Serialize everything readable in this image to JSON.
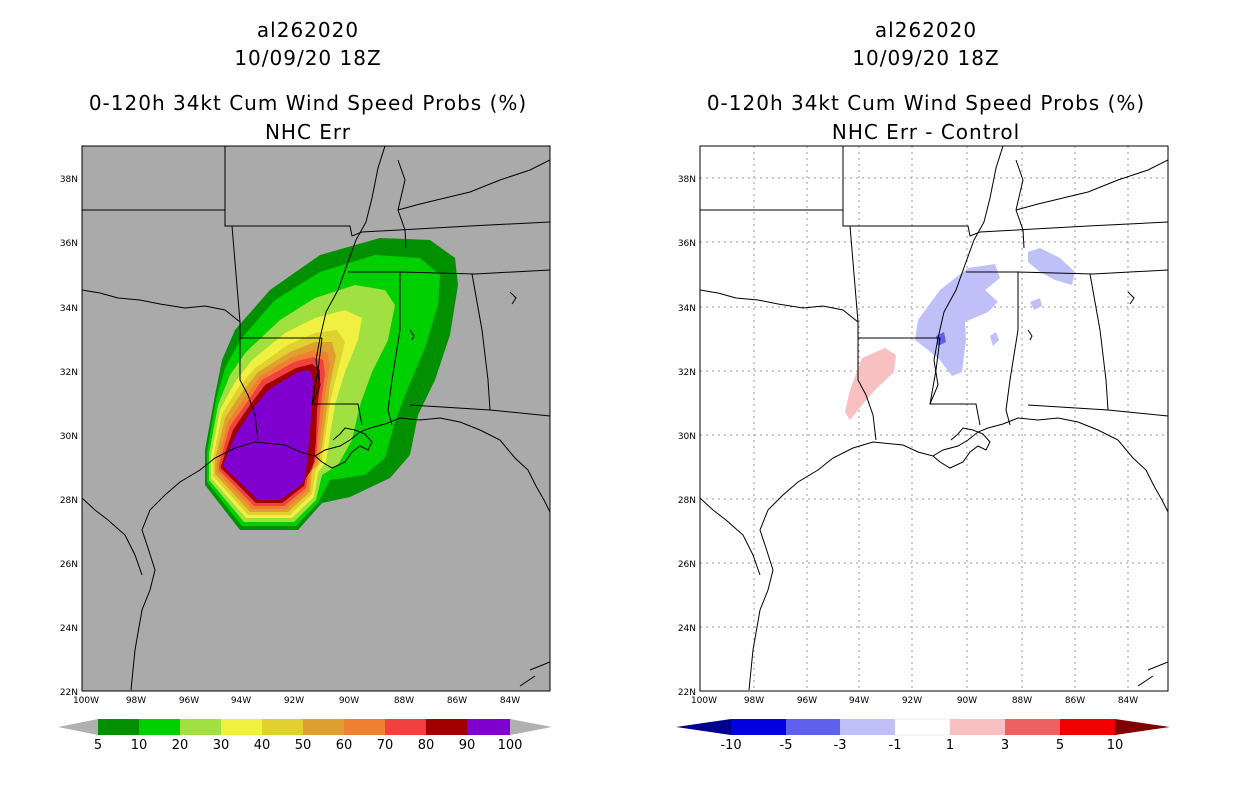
{
  "left_panel": {
    "storm_id": "al262020",
    "datetime": "10/09/20 18Z",
    "product": "0-120h 34kt Cum Wind Speed Probs (%)",
    "subtitle": "NHC Err",
    "lat_labels": [
      "38N",
      "36N",
      "34N",
      "32N",
      "30N",
      "28N",
      "26N",
      "24N",
      "22N"
    ],
    "lon_labels": [
      "100W",
      "98W",
      "96W",
      "94W",
      "92W",
      "90W",
      "88W",
      "86W",
      "84W"
    ],
    "colorbar": {
      "labels": [
        "5",
        "10",
        "20",
        "30",
        "40",
        "50",
        "60",
        "70",
        "80",
        "90",
        "100"
      ],
      "colors": [
        "#009000",
        "#00d000",
        "#a0e040",
        "#f0f040",
        "#e0d030",
        "#e0a030",
        "#f08030",
        "#f04040",
        "#a00000",
        "#8000d0"
      ],
      "end_color": "#b0b0b0"
    },
    "background_color": "#aaaaaa"
  },
  "right_panel": {
    "storm_id": "al262020",
    "datetime": "10/09/20 18Z",
    "product": "0-120h 34kt Cum Wind Speed Probs (%)",
    "subtitle": "NHC Err - Control",
    "lat_labels": [
      "38N",
      "36N",
      "34N",
      "32N",
      "30N",
      "28N",
      "26N",
      "24N",
      "22N"
    ],
    "lon_labels": [
      "100W",
      "98W",
      "96W",
      "94W",
      "92W",
      "90W",
      "88W",
      "86W",
      "84W"
    ],
    "colorbar": {
      "labels": [
        "-10",
        "-5",
        "-3",
        "-1",
        "1",
        "3",
        "5",
        "10"
      ],
      "colors": [
        "#0000e0",
        "#6060f0",
        "#c0c0f8",
        "#ffffff",
        "#f8c0c0",
        "#f06060",
        "#f00000"
      ],
      "low_end_color": "#000090",
      "high_end_color": "#800000"
    },
    "background_color": "#ffffff"
  }
}
